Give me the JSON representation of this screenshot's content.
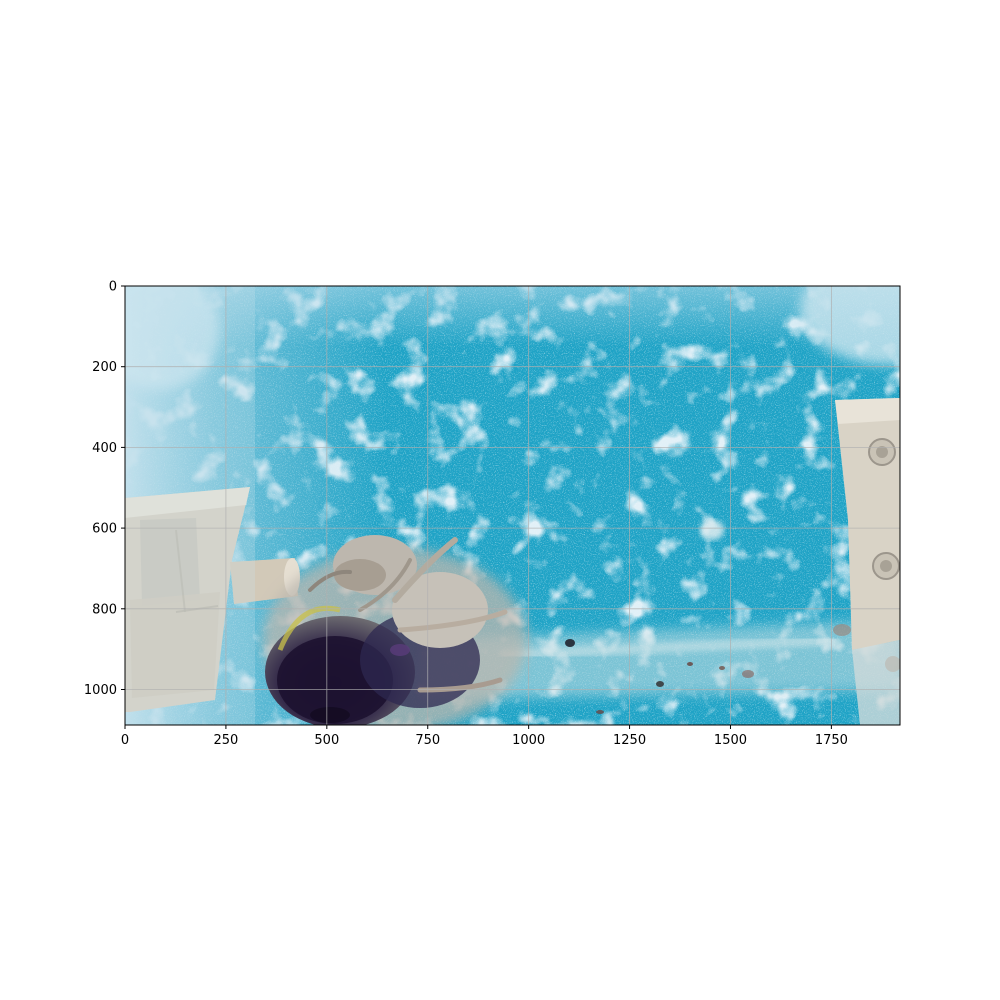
{
  "image": {
    "description_icon": "bee-in-blue-tank-photo-icon",
    "colors": {
      "tank_blue": "#22a8c9",
      "tank_blue_dark": "#1b9ac0",
      "haze": "#b9dcea",
      "grid": "#b0b0b0",
      "fixture_beige": "#d8d1c2",
      "bee_dark": "#241a35",
      "bee_fur": "#c4bfb6"
    }
  },
  "chart_data": {
    "type": "image",
    "x_ticks": [
      "0",
      "250",
      "500",
      "750",
      "1000",
      "1250",
      "1500",
      "1750"
    ],
    "y_ticks": [
      "0",
      "200",
      "400",
      "600",
      "800",
      "1000"
    ],
    "x_tick_values": [
      0,
      250,
      500,
      750,
      1000,
      1250,
      1500,
      1750
    ],
    "y_tick_values": [
      0,
      200,
      400,
      600,
      800,
      1000
    ],
    "xlim": [
      0,
      1920
    ],
    "ylim": [
      1088,
      0
    ],
    "grid": true
  }
}
